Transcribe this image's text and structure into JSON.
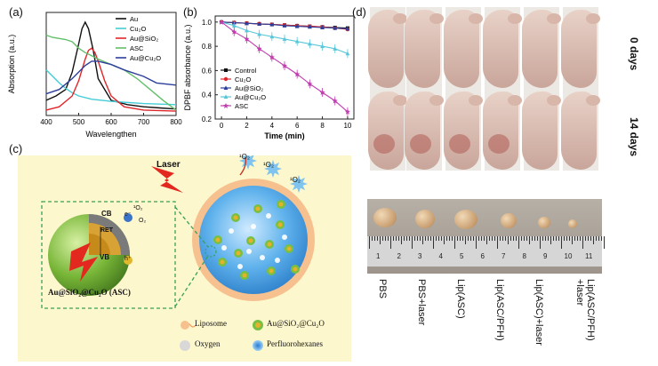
{
  "panels": {
    "a": "(a)",
    "b": "(b)",
    "c": "(c)",
    "d": "(d)"
  },
  "chart_data": [
    {
      "type": "line",
      "xlabel": "Wavelengthen",
      "ylabel": "Absorption (a.u.)",
      "xlim": [
        400,
        800
      ],
      "x_ticks": [
        "400",
        "500",
        "600",
        "700",
        "800"
      ],
      "series": [
        {
          "name": "Au",
          "color": "#111111",
          "x": [
            400,
            430,
            460,
            480,
            500,
            510,
            520,
            530,
            545,
            560,
            600,
            650,
            700,
            750,
            800
          ],
          "y": [
            0.14,
            0.18,
            0.24,
            0.4,
            0.66,
            0.8,
            0.86,
            0.8,
            0.6,
            0.34,
            0.14,
            0.1,
            0.08,
            0.07,
            0.06
          ]
        },
        {
          "name": "Cu₂O",
          "color": "#44cdd6",
          "x": [
            400,
            420,
            440,
            460,
            480,
            500,
            540,
            600,
            700,
            800
          ],
          "y": [
            0.42,
            0.36,
            0.3,
            0.25,
            0.21,
            0.18,
            0.15,
            0.13,
            0.11,
            0.1
          ]
        },
        {
          "name": "Au@SiO₂",
          "color": "#e0262b",
          "x": [
            400,
            440,
            480,
            500,
            520,
            530,
            540,
            550,
            560,
            580,
            600,
            640,
            700,
            800
          ],
          "y": [
            0.05,
            0.08,
            0.18,
            0.32,
            0.52,
            0.6,
            0.62,
            0.58,
            0.5,
            0.32,
            0.18,
            0.08,
            0.05,
            0.04
          ]
        },
        {
          "name": "ASC",
          "color": "#62c06a",
          "x": [
            400,
            420,
            440,
            460,
            480,
            500,
            520,
            540,
            560,
            600,
            640,
            680,
            720,
            760,
            800
          ],
          "y": [
            0.74,
            0.72,
            0.71,
            0.7,
            0.68,
            0.62,
            0.58,
            0.55,
            0.52,
            0.47,
            0.42,
            0.34,
            0.24,
            0.14,
            0.05
          ]
        },
        {
          "name": "Au@Cu₂O",
          "color": "#2d3f9c",
          "x": [
            400,
            440,
            480,
            520,
            540,
            560,
            600,
            640,
            700,
            740,
            800
          ],
          "y": [
            0.2,
            0.24,
            0.34,
            0.46,
            0.5,
            0.5,
            0.47,
            0.42,
            0.36,
            0.3,
            0.28
          ]
        }
      ]
    },
    {
      "type": "line",
      "xlabel": "Time (min)",
      "ylabel": "DPBF absorbance (a.u.)",
      "xlim": [
        -0.5,
        10.5
      ],
      "ylim": [
        0.2,
        1.05
      ],
      "x_ticks": [
        "0",
        "2",
        "4",
        "6",
        "8",
        "10"
      ],
      "y_ticks": [
        "0.2",
        "0.4",
        "0.6",
        "0.8",
        "1.0"
      ],
      "series": [
        {
          "name": "Control",
          "color": "#111111",
          "marker": "square",
          "x": [
            0,
            1,
            2,
            3,
            4,
            5,
            6,
            7,
            8,
            9,
            10
          ],
          "y": [
            1.0,
            0.995,
            0.99,
            0.985,
            0.98,
            0.975,
            0.97,
            0.965,
            0.96,
            0.955,
            0.95
          ]
        },
        {
          "name": "Cu₂O",
          "color": "#e0262b",
          "marker": "circle",
          "x": [
            0,
            1,
            2,
            3,
            4,
            5,
            6,
            7,
            8,
            9,
            10
          ],
          "y": [
            1.0,
            0.995,
            0.99,
            0.985,
            0.98,
            0.975,
            0.97,
            0.965,
            0.96,
            0.95,
            0.94
          ]
        },
        {
          "name": "Au@SiO₂",
          "color": "#2d3f9c",
          "marker": "triangle",
          "x": [
            0,
            1,
            2,
            3,
            4,
            5,
            6,
            7,
            8,
            9,
            10
          ],
          "y": [
            1.0,
            0.995,
            0.99,
            0.985,
            0.98,
            0.97,
            0.965,
            0.96,
            0.955,
            0.95,
            0.945
          ]
        },
        {
          "name": "Au@Cu₂O",
          "color": "#58c7d9",
          "marker": "triangle",
          "x": [
            0,
            1,
            2,
            3,
            4,
            5,
            6,
            7,
            8,
            9,
            10
          ],
          "y": [
            1.0,
            0.97,
            0.93,
            0.9,
            0.88,
            0.86,
            0.84,
            0.82,
            0.8,
            0.78,
            0.74
          ]
        },
        {
          "name": "ASC",
          "color": "#c13fb0",
          "marker": "star",
          "x": [
            0,
            1,
            2,
            3,
            4,
            5,
            6,
            7,
            8,
            9,
            10
          ],
          "y": [
            1.0,
            0.92,
            0.86,
            0.78,
            0.71,
            0.64,
            0.57,
            0.49,
            0.42,
            0.35,
            0.26
          ]
        }
      ]
    }
  ],
  "schematic": {
    "laser_label": "Laser",
    "singlet_label": "¹O₂",
    "o2_label": "O₂",
    "cb_label": "CB",
    "vb_label": "VB",
    "ret_label": "RET",
    "electron_label": "e⁻",
    "hole_label": "h⁺",
    "particle_caption": "Au@SiO₂@Cu₂O (ASC)",
    "legend": [
      {
        "label": "Liposome"
      },
      {
        "label": "Au@SiO₂@Cu₂O"
      },
      {
        "label": "Oxygen"
      },
      {
        "label": "Perfluorohexanes"
      }
    ]
  },
  "photo_panel": {
    "row_labels": [
      "0 days",
      "14 days"
    ],
    "ruler_numbers": [
      "1",
      "2",
      "3",
      "4",
      "5",
      "6",
      "7",
      "8",
      "9",
      "10",
      "11"
    ],
    "groups": [
      "PBS",
      "PBS+laser",
      "Lip(ASC)",
      "Lip(ASC/PFH)",
      "Lip(ASC)+laser",
      "Lip(ASC/PFH)\n+laser"
    ]
  }
}
